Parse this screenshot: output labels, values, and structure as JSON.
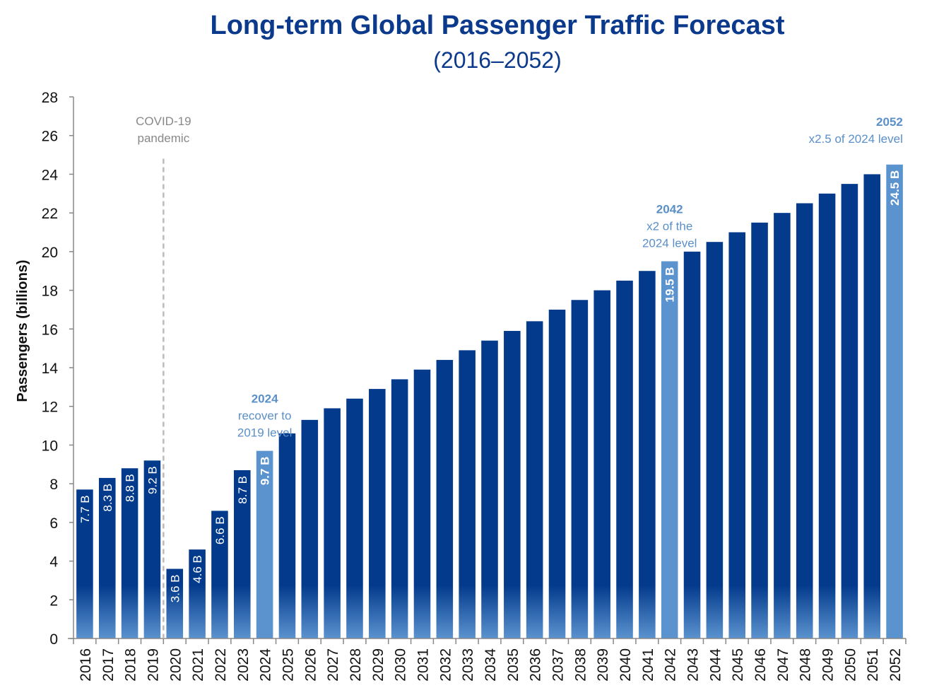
{
  "chart_data": {
    "type": "bar",
    "title": "Long-term Global Passenger Traffic Forecast",
    "subtitle": "(2016–2052)",
    "xlabel": "",
    "ylabel": "Passengers (billions)",
    "ylim": [
      0,
      28
    ],
    "yticks": [
      0,
      2,
      4,
      6,
      8,
      10,
      12,
      14,
      16,
      18,
      20,
      22,
      24,
      26,
      28
    ],
    "grid": false,
    "categories": [
      "2016",
      "2017",
      "2018",
      "2019",
      "2020",
      "2021",
      "2022",
      "2023",
      "2024",
      "2025",
      "2026",
      "2027",
      "2028",
      "2029",
      "2030",
      "2031",
      "2032",
      "2033",
      "2034",
      "2035",
      "2036",
      "2037",
      "2038",
      "2039",
      "2040",
      "2041",
      "2042",
      "2043",
      "2044",
      "2045",
      "2046",
      "2047",
      "2048",
      "2049",
      "2050",
      "2051",
      "2052"
    ],
    "values": [
      7.7,
      8.3,
      8.8,
      9.2,
      3.6,
      4.6,
      6.6,
      8.7,
      9.7,
      10.6,
      11.3,
      11.9,
      12.4,
      12.9,
      13.4,
      13.9,
      14.4,
      14.9,
      15.4,
      15.9,
      16.4,
      17.0,
      17.5,
      18.0,
      18.5,
      19.0,
      19.5,
      20.0,
      20.5,
      21.0,
      21.5,
      22.0,
      22.5,
      23.0,
      23.5,
      24.0,
      24.5
    ],
    "highlighted": [
      "2024",
      "2042",
      "2052"
    ],
    "data_labels": {
      "2016": "7.7 B",
      "2017": "8.3 B",
      "2018": "8.8 B",
      "2019": "9.2 B",
      "2020": "3.6 B",
      "2021": "4.6 B",
      "2022": "6.6 B",
      "2023": "8.7 B",
      "2024": "9.7 B",
      "2042": "19.5 B",
      "2052": "24.5 B"
    },
    "colors": {
      "bar": "#033a8c",
      "bar_bottom": "#5b93cf",
      "highlight": "#5b93cf",
      "annotation": "#5b8fc7",
      "title": "#0b3a8c",
      "divider": "#bbbbbb"
    },
    "annotations": [
      {
        "category": "2019",
        "lines": [
          "COVID-19",
          "pandemic"
        ],
        "style": "divider"
      },
      {
        "category": "2024",
        "lines": [
          "2024",
          "recover to",
          "2019 level"
        ]
      },
      {
        "category": "2042",
        "lines": [
          "2042",
          "x2 of the",
          "2024 level"
        ]
      },
      {
        "category": "2052",
        "lines": [
          "2052",
          "x2.5 of 2024 level"
        ]
      }
    ]
  }
}
